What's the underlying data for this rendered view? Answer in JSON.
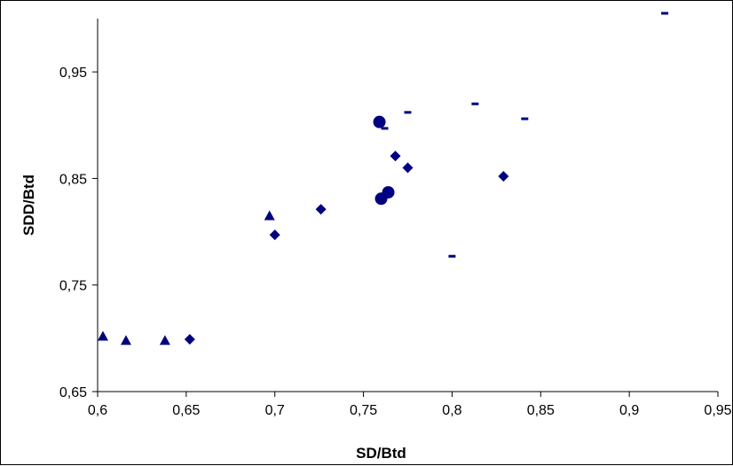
{
  "chart_data": {
    "type": "scatter",
    "xlabel": "SD/Btd",
    "ylabel": "SDD/Btd",
    "xlim": [
      0.6,
      0.95
    ],
    "ylim": [
      0.65,
      1.0
    ],
    "x_ticks": [
      0.6,
      0.65,
      0.7,
      0.75,
      0.8,
      0.85,
      0.9,
      0.95
    ],
    "x_tick_labels": [
      "0,6",
      "0,65",
      "0,7",
      "0,75",
      "0,8",
      "0,85",
      "0,9",
      "0,95"
    ],
    "y_ticks": [
      0.65,
      0.75,
      0.85,
      0.95
    ],
    "y_tick_labels": [
      "0,65",
      "0,75",
      "0,85",
      "0,95"
    ],
    "grid": false,
    "legend": "none",
    "marker_color": "#000080",
    "series": [
      {
        "marker": "triangle",
        "points": [
          [
            0.603,
            0.702
          ],
          [
            0.616,
            0.698
          ],
          [
            0.638,
            0.698
          ],
          [
            0.697,
            0.815
          ]
        ]
      },
      {
        "marker": "diamond",
        "points": [
          [
            0.652,
            0.699
          ],
          [
            0.7,
            0.797
          ],
          [
            0.726,
            0.821
          ],
          [
            0.768,
            0.871
          ],
          [
            0.775,
            0.86
          ],
          [
            0.829,
            0.852
          ]
        ]
      },
      {
        "marker": "circle",
        "points": [
          [
            0.759,
            0.903
          ],
          [
            0.76,
            0.831
          ],
          [
            0.764,
            0.837
          ]
        ]
      },
      {
        "marker": "dash",
        "points": [
          [
            0.762,
            0.897
          ],
          [
            0.775,
            0.912
          ],
          [
            0.8,
            0.777
          ],
          [
            0.813,
            0.92
          ],
          [
            0.841,
            0.906
          ],
          [
            0.92,
            1.005
          ]
        ]
      }
    ]
  }
}
